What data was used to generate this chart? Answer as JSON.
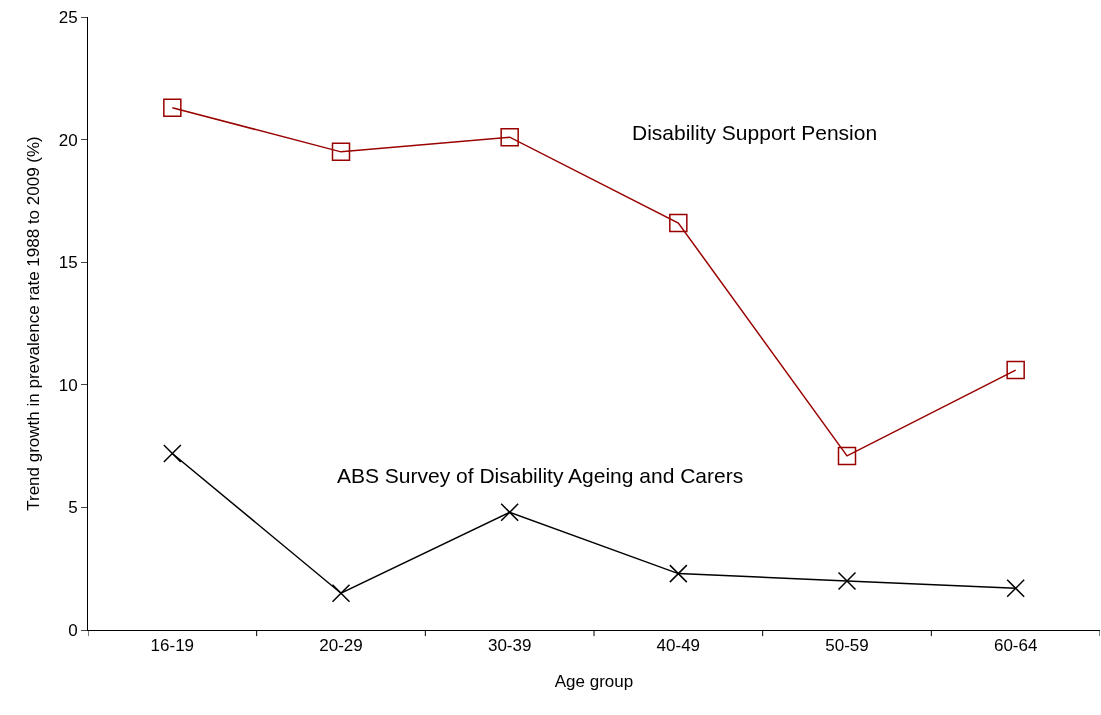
{
  "chart_data": {
    "type": "line",
    "xlabel": "Age group",
    "ylabel": "Trend growth in prevalence rate 1988 to 2009 (%)",
    "categories": [
      "16-19",
      "20-29",
      "30-39",
      "40-49",
      "50-59",
      "60-64"
    ],
    "series": [
      {
        "name": "Disability Support Pension",
        "color": "#990000",
        "marker": "square",
        "values": [
          21.3,
          19.5,
          20.1,
          16.6,
          7.1,
          10.6
        ]
      },
      {
        "name": "ABS Survey of Disability Ageing and Carers",
        "color": "#000000",
        "marker": "cross",
        "values": [
          7.2,
          1.5,
          4.8,
          2.3,
          2.0,
          1.7
        ]
      }
    ],
    "ylim": [
      0,
      25
    ],
    "yticks": [
      0,
      5,
      10,
      15,
      20,
      25
    ],
    "grid": false,
    "legend": false,
    "line_style": "solid"
  }
}
